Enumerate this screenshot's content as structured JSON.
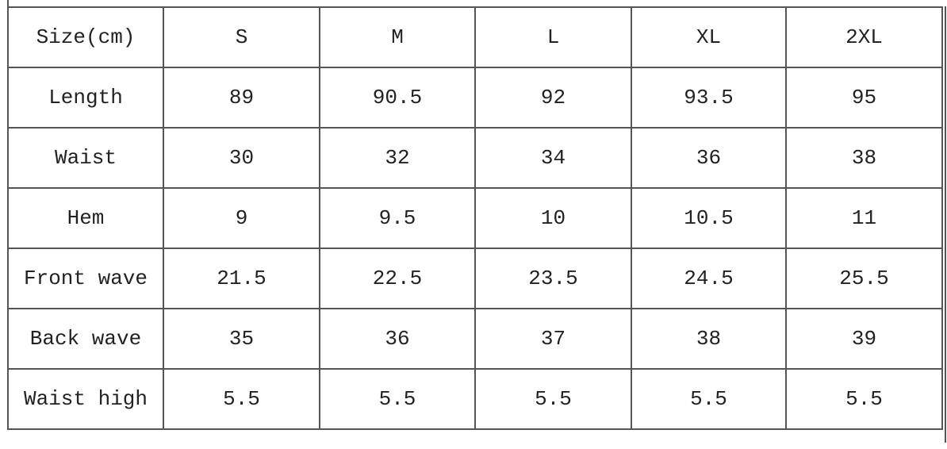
{
  "table": {
    "header": [
      "Size(cm)",
      "S",
      "M",
      "L",
      "XL",
      "2XL"
    ],
    "rows": [
      [
        "Length",
        89,
        90.5,
        92,
        93.5,
        95
      ],
      [
        "Waist",
        30,
        32,
        34,
        36,
        38
      ],
      [
        "Hem",
        9,
        9.5,
        10,
        10.5,
        11
      ],
      [
        "Front wave",
        21.5,
        22.5,
        23.5,
        24.5,
        25.5
      ],
      [
        "Back wave",
        35,
        36,
        37,
        38,
        39
      ],
      [
        "Waist high",
        5.5,
        5.5,
        5.5,
        5.5,
        5.5
      ]
    ]
  }
}
